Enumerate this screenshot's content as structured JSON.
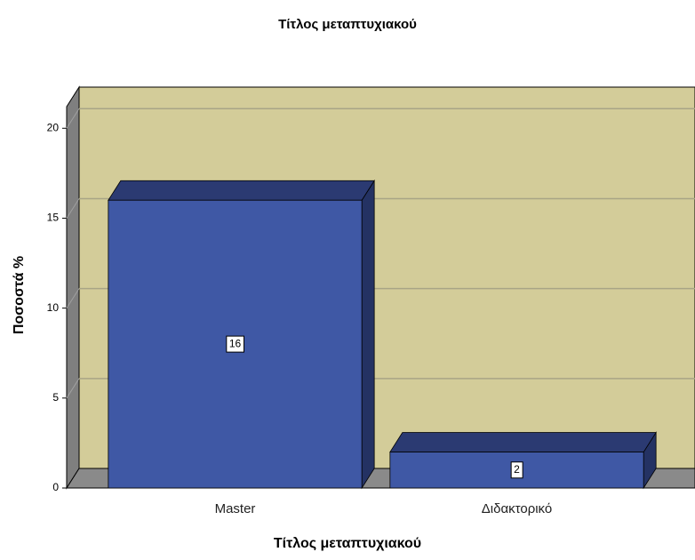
{
  "chart_data": {
    "type": "bar3d",
    "title": "Τίτλος μεταπτυχιακού",
    "x_label": "Τίτλος μεταπτυχιακού",
    "y_label": "Ποσοστά %",
    "categories": [
      "Master",
      "Διδακτορικό"
    ],
    "values": [
      16,
      2
    ],
    "color": "#3f58a5",
    "ylim": [
      0,
      21.2
    ],
    "yticks": [
      0,
      5,
      10,
      15,
      20
    ],
    "grid": true
  }
}
